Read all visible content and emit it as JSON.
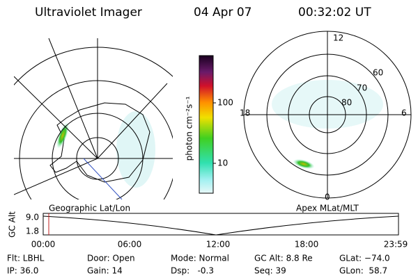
{
  "header": {
    "title": "Ultraviolet Imager",
    "date": "04 Apr 07",
    "time": "00:32:02 UT"
  },
  "polar_map": {
    "mlt_labels": [
      "12",
      "18",
      "6",
      "0"
    ],
    "lat_labels": [
      "60",
      "70",
      "80"
    ]
  },
  "colorbar": {
    "unit": "photon cm⁻²s⁻¹",
    "ticks": [
      "100",
      "10"
    ]
  },
  "timeline": {
    "y_label": "GC Alt",
    "y_ticks": [
      "9.0",
      "1.8"
    ],
    "x_ticks": [
      "00:00",
      "06:00",
      "12:00",
      "18:00",
      "23:59"
    ],
    "left_caption": "Geographic Lat/Lon",
    "right_caption": "Apex MLat/MLT"
  },
  "footer": {
    "rows": [
      [
        "Flt: LBHL",
        "Door: Open",
        "Mode: Normal",
        "GC Alt: 8.8 Re",
        "GLat: −74.0"
      ],
      [
        "IP: 36.0",
        "Gain: 14",
        "Dsp:   -0.3",
        "Seq: 39",
        "GLon:  58.7"
      ]
    ]
  }
}
